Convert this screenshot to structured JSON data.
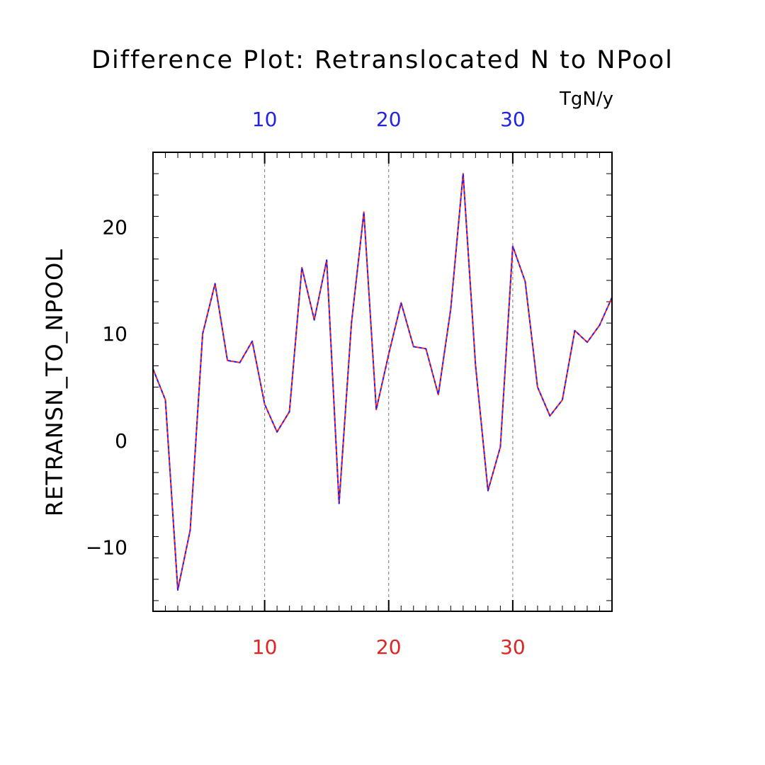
{
  "chart_data": {
    "type": "line",
    "title": "Difference Plot: Retranslocated N to NPool",
    "units": "TgN/y",
    "ylabel": "RETRANSN_TO_NPOOL",
    "xlim": [
      1,
      38
    ],
    "ylim": [
      -16,
      27
    ],
    "x_ticks": [
      10,
      20,
      30
    ],
    "y_ticks": [
      -10,
      0,
      10,
      20
    ],
    "grid_x": true,
    "colors": {
      "top_axis_labels": "#2424e0",
      "bottom_axis_labels": "#e02424",
      "line_a": "#ff2020",
      "line_b": "#2020ff",
      "grid": "#777777"
    },
    "x": [
      1,
      2,
      3,
      4,
      5,
      6,
      7,
      8,
      9,
      10,
      11,
      12,
      13,
      14,
      15,
      16,
      17,
      18,
      19,
      20,
      21,
      22,
      23,
      24,
      25,
      26,
      27,
      28,
      29,
      30,
      31,
      32,
      33,
      34,
      35,
      36,
      37,
      38
    ],
    "series": [
      {
        "values": [
          6.7,
          3.8,
          -14.0,
          -8.4,
          10.0,
          14.7,
          7.5,
          7.3,
          9.3,
          3.4,
          0.8,
          2.7,
          16.2,
          11.3,
          16.9,
          -5.9,
          11.0,
          21.4,
          2.9,
          8.1,
          12.9,
          8.8,
          8.6,
          4.3,
          12.3,
          25.0,
          7.0,
          -4.7,
          -0.6,
          18.2,
          14.9,
          5.0,
          2.3,
          3.8,
          10.3,
          9.2,
          10.8,
          13.4
        ]
      }
    ]
  }
}
